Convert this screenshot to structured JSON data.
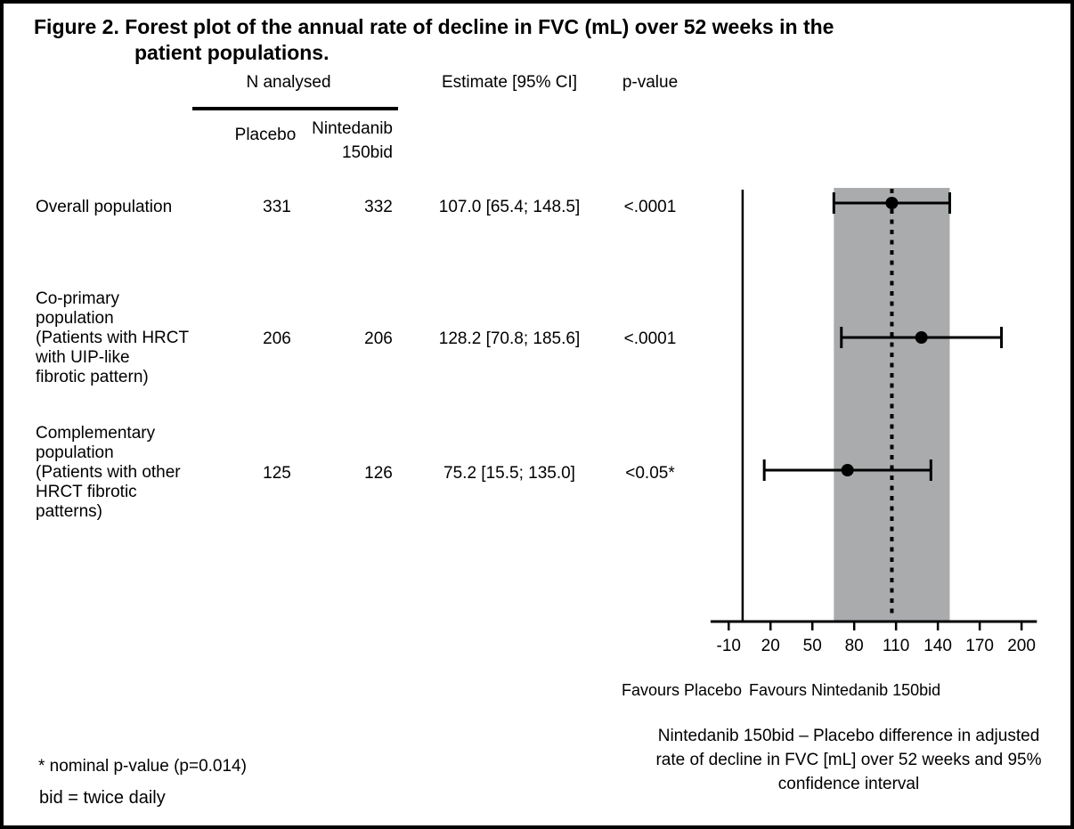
{
  "figure_title": {
    "line1": "Figure 2. Forest plot of the annual rate of decline in FVC (mL) over 52 weeks in the",
    "line2": "patient populations."
  },
  "table": {
    "group_header": "N analysed",
    "headers": {
      "placebo": "Placebo",
      "nintedanib": "Nintedanib\n150bid",
      "estimate": "Estimate [95% CI]",
      "p_value": "p-value"
    },
    "rows": [
      {
        "label": "Overall population",
        "n_placebo": "331",
        "n_nintedanib": "332",
        "estimate": "107.0 [65.4; 148.5]",
        "p_value": "<.0001"
      },
      {
        "label": "Co-primary\npopulation\n(Patients with HRCT\nwith UIP-like\nfibrotic pattern)",
        "n_placebo": "206",
        "n_nintedanib": "206",
        "estimate": "128.2 [70.8; 185.6]",
        "p_value": "<.0001"
      },
      {
        "label": "Complementary\npopulation\n(Patients with other\nHRCT fibrotic\npatterns)",
        "n_placebo": "125",
        "n_nintedanib": "126",
        "estimate": "75.2 [15.5; 135.0]",
        "p_value": "<0.05*"
      }
    ]
  },
  "chart_data": {
    "type": "forest",
    "x_axis": {
      "ticks": [
        -10,
        20,
        50,
        80,
        110,
        140,
        170,
        200
      ],
      "axis_line_range": [
        -23,
        211
      ]
    },
    "zero_reference_line": 0,
    "dotted_reference_line": 107.0,
    "shaded_band": {
      "from": 65.4,
      "to": 148.5,
      "color": "#a9abad"
    },
    "series": [
      {
        "population": "Overall population",
        "estimate": 107.0,
        "ci_lower": 65.4,
        "ci_upper": 148.5
      },
      {
        "population": "Co-primary population (Patients with HRCT with UIP-like fibrotic pattern)",
        "estimate": 128.2,
        "ci_lower": 70.8,
        "ci_upper": 185.6
      },
      {
        "population": "Complementary population (Patients with other HRCT fibrotic patterns)",
        "estimate": 75.2,
        "ci_lower": 15.5,
        "ci_upper": 135.0
      }
    ],
    "favours_left_label": "Favours Placebo",
    "favours_right_label": "Favours Nintedanib 150bid",
    "axis_caption": "Nintedanib 150bid – Placebo difference in adjusted rate of decline in FVC [mL] over 52 weeks and 95% confidence interval",
    "marker_color": "#000000"
  },
  "footnotes": {
    "asterisk_note": "* nominal p-value (p=0.014)",
    "abbreviation_note": "bid = twice daily"
  }
}
